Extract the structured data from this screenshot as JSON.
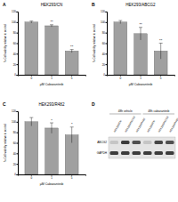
{
  "chart_data": [
    {
      "type": "bar",
      "panel": "A",
      "title": "HEK293/CN",
      "x_label": "µM Cabozantinib",
      "y_label": "% Cell viability relative to control",
      "categories": [
        "0",
        "1",
        "5"
      ],
      "values": [
        100,
        93,
        45
      ],
      "errors": [
        2,
        2,
        3
      ],
      "significance": [
        null,
        "**",
        "**"
      ],
      "color": "#a0a0a0",
      "ylim": [
        0,
        120
      ],
      "yticks": [
        0,
        20,
        40,
        60,
        80,
        100,
        120
      ]
    },
    {
      "type": "bar",
      "panel": "B",
      "title": "HEK293/ABCG2",
      "x_label": "µM Cabozantinib",
      "y_label": "% Cell viability relative to control",
      "categories": [
        "0",
        "1",
        "5"
      ],
      "values": [
        100,
        78,
        45
      ],
      "errors": [
        3,
        12,
        15
      ],
      "significance": [
        null,
        "**",
        "**"
      ],
      "color": "#a0a0a0",
      "ylim": [
        0,
        120
      ],
      "yticks": [
        0,
        20,
        40,
        60,
        80,
        100,
        120
      ]
    },
    {
      "type": "bar",
      "panel": "C",
      "title": "HEK293/R482",
      "x_label": "µM Cabozantinib",
      "y_label": "% Cell viability relative to control",
      "categories": [
        "0",
        "1",
        "5"
      ],
      "values": [
        100,
        88,
        75
      ],
      "errors": [
        8,
        10,
        15
      ],
      "significance": [
        null,
        "*",
        "*"
      ],
      "color": "#a0a0a0",
      "ylim": [
        0,
        120
      ],
      "yticks": [
        0,
        20,
        40,
        60,
        80,
        100,
        120
      ]
    }
  ],
  "blot": {
    "panel": "D",
    "groups": [
      "48h vehicle",
      "48h cabozantinib"
    ],
    "lanes": [
      "HEK293/CN",
      "HEK293/ABCG2",
      "HEK293/R482",
      "HEK293/CN",
      "HEK293/ABCG2",
      "HEK293/R482"
    ],
    "rows": [
      "ABCG2",
      "GAPDH"
    ],
    "bands": [
      [
        0.15,
        0.8,
        0.7,
        0.15,
        0.75,
        0.7
      ],
      [
        0.8,
        0.8,
        0.8,
        0.8,
        0.8,
        0.8
      ]
    ]
  }
}
